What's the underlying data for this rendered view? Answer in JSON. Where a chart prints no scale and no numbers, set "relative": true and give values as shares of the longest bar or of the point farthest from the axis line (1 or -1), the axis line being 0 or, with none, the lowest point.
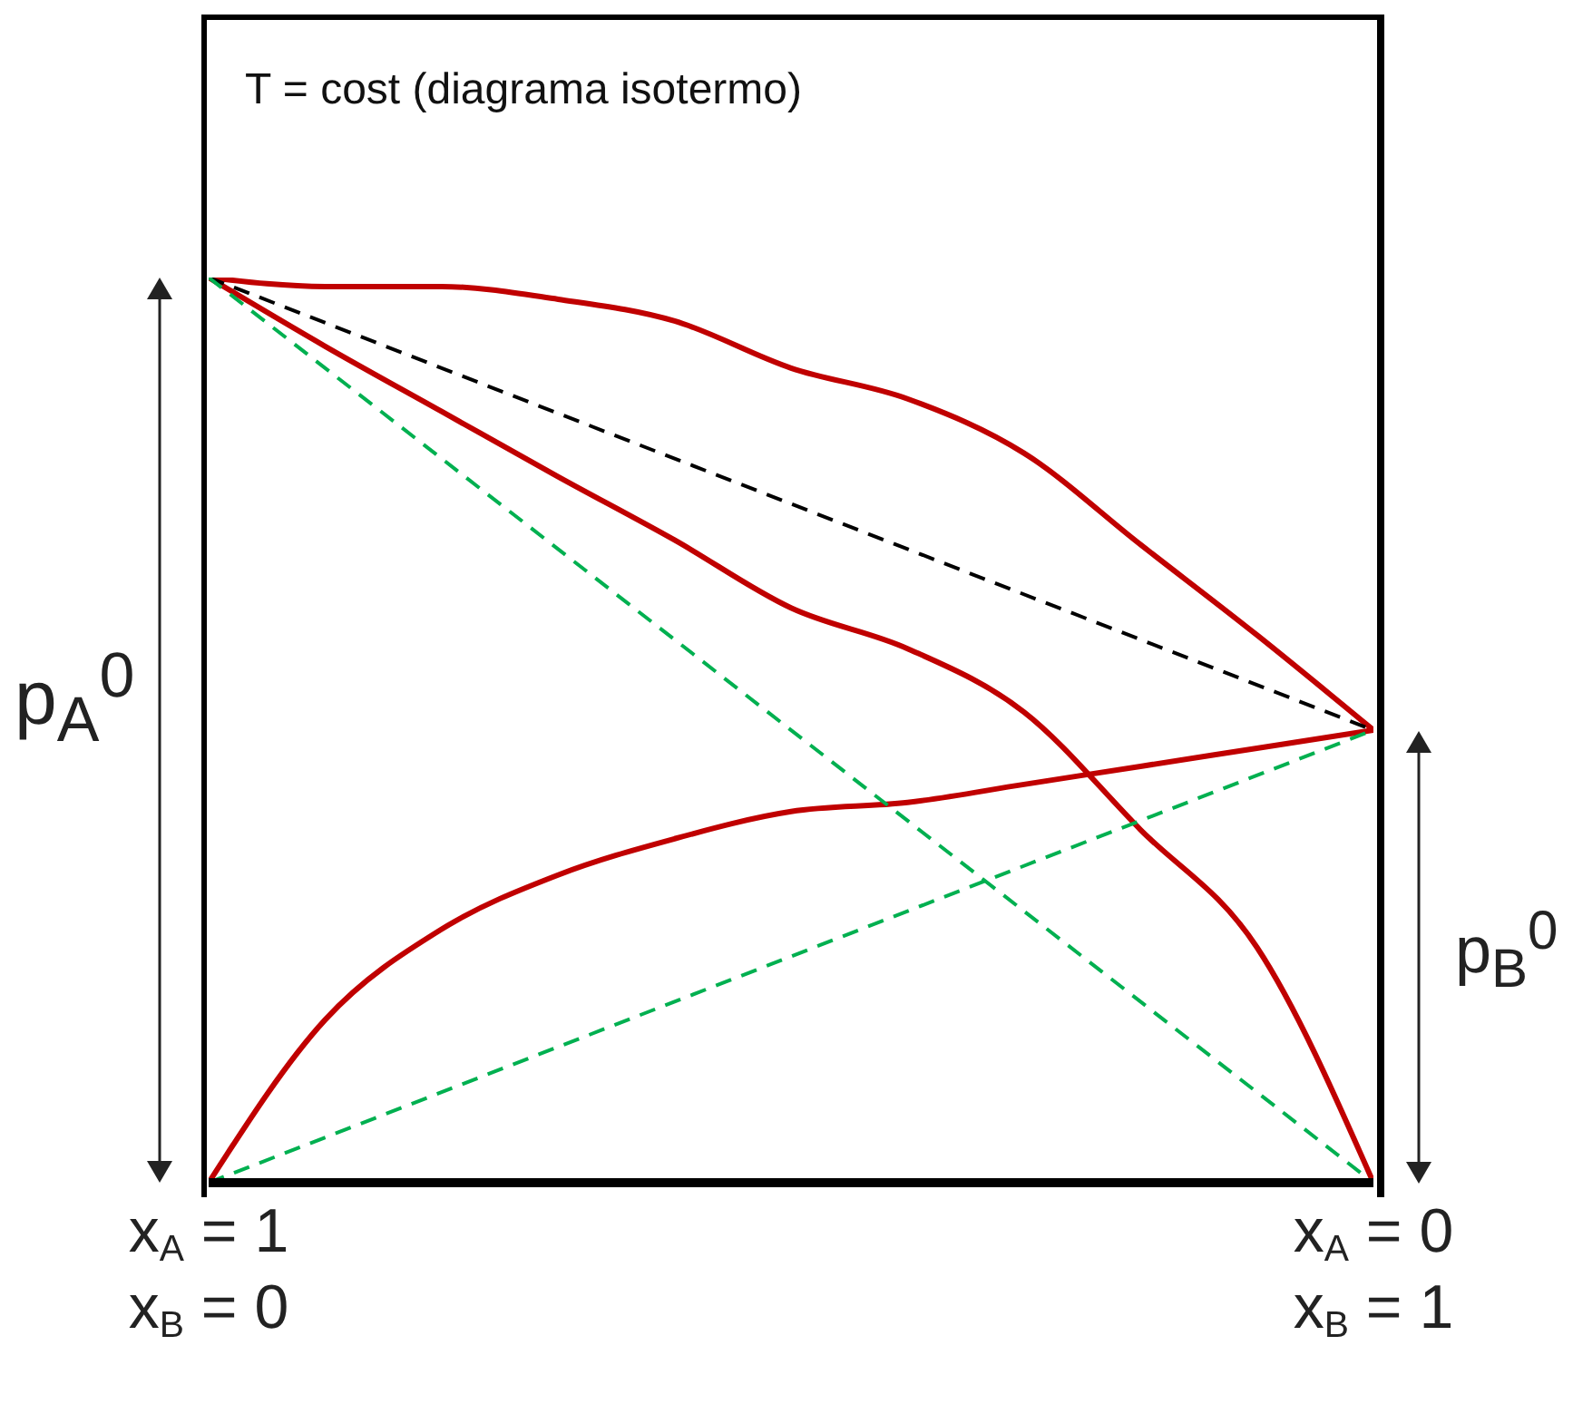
{
  "chart_data": {
    "type": "line",
    "title": "T = cost  (diagrama isotermo)",
    "relative": true,
    "marker": "none",
    "categories": [
      "x$_{A}$ = 1\nx$_{B}$ = 0",
      null,
      null,
      null,
      null,
      null,
      null,
      null,
      null,
      null,
      "x$_{A}$ = 0\nx$_{B}$ = 1"
    ],
    "series": [
      {
        "color": "#c00000",
        "line_style": "solid",
        "values": [
          1,
          0.99,
          0.99,
          0.976,
          0.952,
          0.9,
          0.866,
          0.806,
          0.705,
          0.605,
          0.5
        ]
      },
      {
        "color": "#c00000",
        "line_style": "solid",
        "values": [
          1,
          0.924,
          0.852,
          0.78,
          0.71,
          0.635,
          0.59,
          0.52,
          0.39,
          0.26,
          0
        ]
      },
      {
        "color": "#c00000",
        "line_style": "solid",
        "values": [
          0,
          0.18,
          0.28,
          0.34,
          0.38,
          0.41,
          0.42,
          0.44,
          0.46,
          0.48,
          0.5
        ]
      },
      {
        "color": "#000000",
        "line_style": "dashed",
        "values": [
          1,
          null,
          null,
          null,
          null,
          null,
          null,
          null,
          null,
          null,
          0.5
        ]
      },
      {
        "color": "#00b050",
        "line_style": "dashed",
        "values": [
          1,
          null,
          null,
          null,
          null,
          null,
          null,
          null,
          null,
          null,
          0
        ]
      },
      {
        "color": "#00b050",
        "line_style": "dashed",
        "values": [
          0,
          null,
          null,
          null,
          null,
          null,
          null,
          null,
          null,
          null,
          0.5
        ]
      }
    ],
    "annotations": [
      "p$_{A}$$^{0}$",
      "p$_{B}$$^{0}$"
    ]
  }
}
